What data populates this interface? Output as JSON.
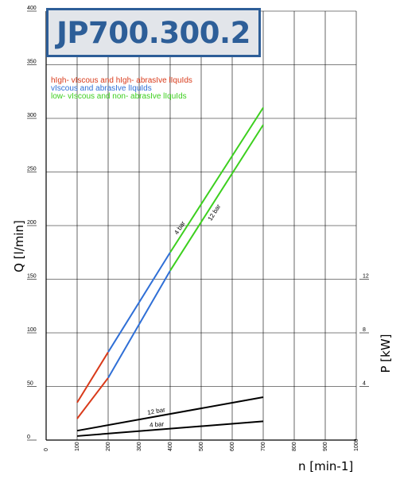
{
  "title": "JP700.300.2",
  "legend": [
    {
      "label": "hIgh- vIscous and hIgh- abrasIve lIquIds",
      "color": "#d93a1a"
    },
    {
      "label": "vIscous and abrasIve lIquIds",
      "color": "#2f6fd6"
    },
    {
      "label": "low- vIscous and non- abrasIve lIquIds",
      "color": "#3ccf1e"
    }
  ],
  "chart_data": {
    "type": "line",
    "title": "JP700.300.2",
    "xlabel": "n [min-1]",
    "ylabel": "Q [l/min]",
    "y2label": "P [kW]",
    "xlim": [
      0,
      1000
    ],
    "ylim": [
      0,
      400
    ],
    "y2lim": [
      0,
      12
    ],
    "x_ticks": [
      "0",
      "100",
      "200",
      "300",
      "400",
      "500",
      "600",
      "700",
      "800",
      "900",
      "1000"
    ],
    "y_ticks": [
      "0",
      "50",
      "100",
      "150",
      "200",
      "250",
      "300",
      "350",
      "400"
    ],
    "y2_ticks": [
      "4",
      "8",
      "12"
    ],
    "grid": true,
    "flow_series": [
      {
        "label": "4 bar",
        "segments": [
          {
            "color": "#d93a1a",
            "points": [
              [
                100,
                35
              ],
              [
                200,
                82
              ]
            ]
          },
          {
            "color": "#2f6fd6",
            "points": [
              [
                200,
                82
              ],
              [
                400,
                175
              ]
            ]
          },
          {
            "color": "#3ccf1e",
            "points": [
              [
                400,
                175
              ],
              [
                700,
                310
              ]
            ]
          }
        ]
      },
      {
        "label": "12 bar",
        "segments": [
          {
            "color": "#d93a1a",
            "points": [
              [
                100,
                20
              ],
              [
                200,
                58
              ]
            ]
          },
          {
            "color": "#2f6fd6",
            "points": [
              [
                200,
                58
              ],
              [
                400,
                158
              ]
            ]
          },
          {
            "color": "#3ccf1e",
            "points": [
              [
                400,
                158
              ],
              [
                700,
                294
              ]
            ]
          }
        ]
      }
    ],
    "power_series": [
      {
        "label": "12 bar",
        "color": "#000000",
        "points": [
          [
            100,
            0.7
          ],
          [
            700,
            3.2
          ]
        ]
      },
      {
        "label": "4 bar",
        "color": "#000000",
        "points": [
          [
            100,
            0.3
          ],
          [
            700,
            1.4
          ]
        ]
      }
    ]
  }
}
